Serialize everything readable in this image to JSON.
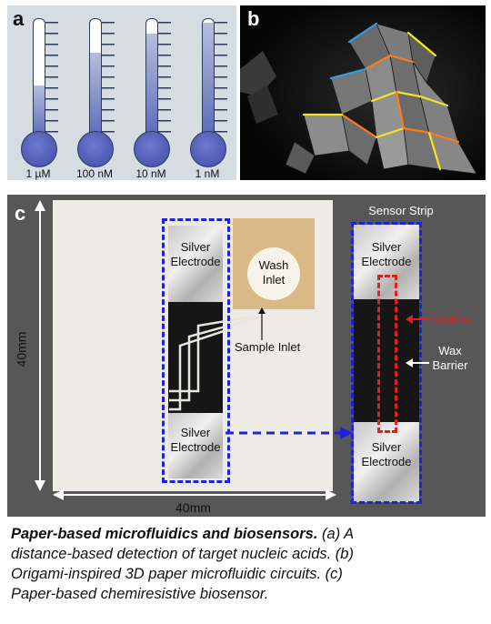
{
  "panels": {
    "a": {
      "letter": "a",
      "thermometers": [
        {
          "label": "1 µM",
          "fill_fraction": 0.45
        },
        {
          "label": "100 nM",
          "fill_fraction": 0.72
        },
        {
          "label": "10 nM",
          "fill_fraction": 0.88
        },
        {
          "label": "1 nM",
          "fill_fraction": 0.97
        }
      ],
      "colors": {
        "fluid": "#5a68b8",
        "background": "#d5dde3"
      }
    },
    "b": {
      "letter": "b",
      "subject": "origami paper structure",
      "colors": {
        "edge_orange": "#ff7a1a",
        "edge_yellow": "#f4e41c",
        "edge_blue": "#2f9be0"
      }
    },
    "c": {
      "letter": "c",
      "sensor_strip_title": "Sensor Strip",
      "silver_electrode_top": "Silver\nElectrode",
      "silver_electrode_bottom": "Silver\nElectrode",
      "wash_inlet": "Wash\nInlet",
      "sample_inlet": "Sample Inlet",
      "strip_electrode_top": "Silver\nElectrode",
      "strip_electrode_bottom": "Silver\nElectrode",
      "swnts": "SWNTs",
      "wax_barrier": "Wax\nBarrier",
      "dimension_vertical": "40mm",
      "dimension_horizontal": "40mm",
      "colors": {
        "dashed": "#1f22d6",
        "swnts": "#e0201e"
      }
    }
  },
  "caption": {
    "title": "Paper-based microfluidics and biosensors.",
    "text_line1": " (a) A",
    "text_line2": "distance-based detection of target nucleic acids. (b)",
    "text_line3": "Origami-inspired 3D paper microfluidic circuits. (c)",
    "text_line4": "Paper-based chemiresistive biosensor."
  }
}
